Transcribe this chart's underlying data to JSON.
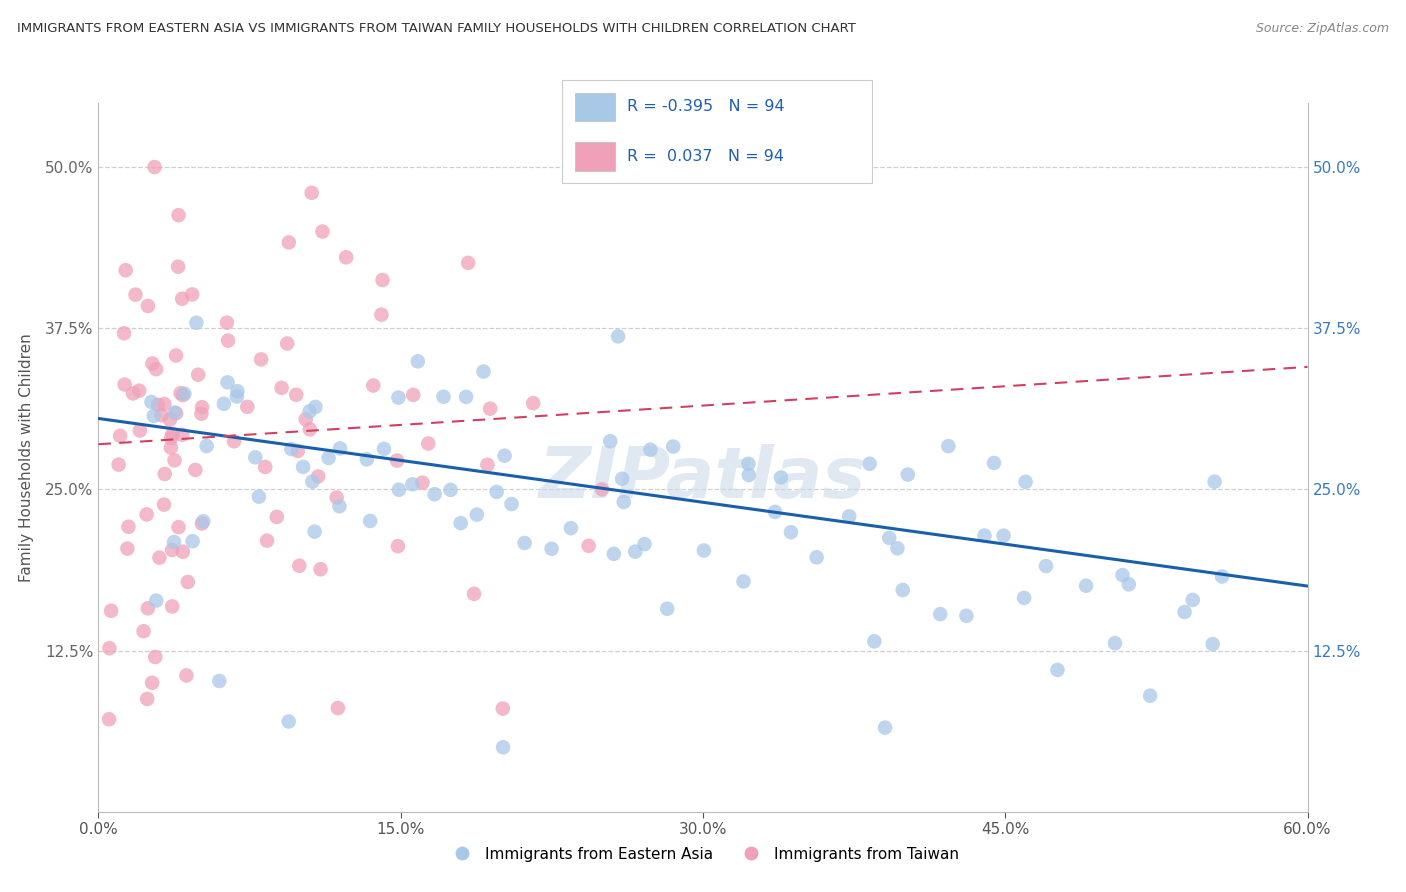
{
  "title": "IMMIGRANTS FROM EASTERN ASIA VS IMMIGRANTS FROM TAIWAN FAMILY HOUSEHOLDS WITH CHILDREN CORRELATION CHART",
  "source": "Source: ZipAtlas.com",
  "ylabel": "Family Households with Children",
  "legend_labels": [
    "Immigrants from Eastern Asia",
    "Immigrants from Taiwan"
  ],
  "blue_color": "#a8c8e8",
  "pink_color": "#f0a0b8",
  "blue_line_color": "#1a5faa",
  "pink_line_color": "#d04060",
  "R_blue": -0.395,
  "N_blue": 94,
  "R_pink": 0.037,
  "N_pink": 94,
  "xlim": [
    0.0,
    0.6
  ],
  "ylim": [
    0.0,
    0.55
  ],
  "yticks": [
    0.125,
    0.25,
    0.375,
    0.5
  ],
  "ytick_labels_left": [
    "12.5%",
    "25.0%",
    "37.5%",
    "50.0%"
  ],
  "ytick_labels_right": [
    "12.5%",
    "25.0%",
    "37.5%",
    "50.0%"
  ],
  "xticks": [
    0.0,
    0.15,
    0.3,
    0.45,
    0.6
  ],
  "xtick_labels": [
    "0.0%",
    "15.0%",
    "30.0%",
    "45.0%",
    "60.0%"
  ],
  "blue_line_x": [
    0.0,
    0.6
  ],
  "blue_line_y": [
    0.305,
    0.175
  ],
  "pink_line_x": [
    0.0,
    0.6
  ],
  "pink_line_y": [
    0.285,
    0.345
  ]
}
